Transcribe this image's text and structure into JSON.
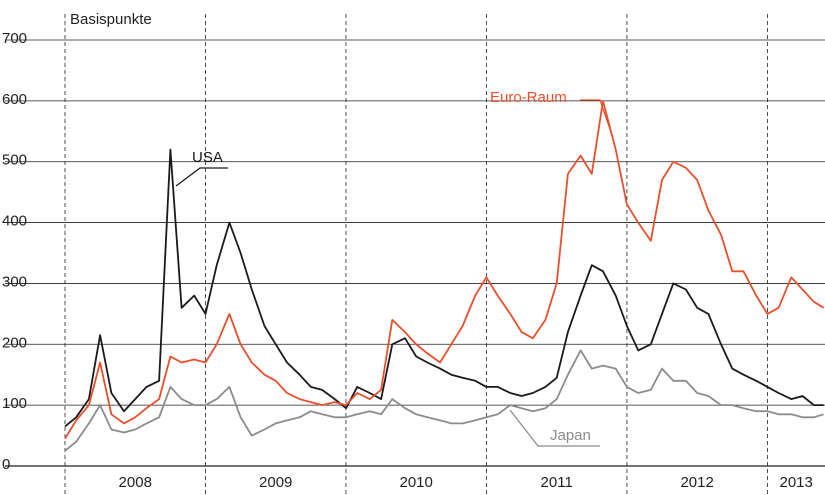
{
  "chart_data": {
    "type": "line",
    "y_label": "Basispunkte",
    "x": [
      2008,
      2008.08,
      2008.17,
      2008.25,
      2008.33,
      2008.42,
      2008.5,
      2008.58,
      2008.67,
      2008.75,
      2008.83,
      2008.92,
      2009,
      2009.08,
      2009.17,
      2009.25,
      2009.33,
      2009.42,
      2009.5,
      2009.58,
      2009.67,
      2009.75,
      2009.83,
      2009.92,
      2010,
      2010.08,
      2010.17,
      2010.25,
      2010.33,
      2010.42,
      2010.5,
      2010.58,
      2010.67,
      2010.75,
      2010.83,
      2010.92,
      2011,
      2011.08,
      2011.17,
      2011.25,
      2011.33,
      2011.42,
      2011.5,
      2011.58,
      2011.67,
      2011.75,
      2011.83,
      2011.92,
      2012,
      2012.08,
      2012.17,
      2012.25,
      2012.33,
      2012.42,
      2012.5,
      2012.58,
      2012.67,
      2012.75,
      2012.83,
      2012.92,
      2013,
      2013.08,
      2013.17,
      2013.25,
      2013.33,
      2013.4
    ],
    "series": [
      {
        "name": "USA",
        "color": "#1a1a1a",
        "values": [
          65,
          80,
          110,
          215,
          120,
          90,
          110,
          130,
          140,
          520,
          260,
          280,
          250,
          330,
          400,
          350,
          290,
          230,
          200,
          170,
          150,
          130,
          125,
          110,
          95,
          130,
          120,
          110,
          200,
          210,
          180,
          170,
          160,
          150,
          145,
          140,
          130,
          130,
          120,
          115,
          120,
          130,
          145,
          220,
          280,
          330,
          320,
          280,
          230,
          190,
          200,
          250,
          300,
          290,
          260,
          250,
          200,
          160,
          150,
          140,
          130,
          120,
          110,
          115,
          100,
          100
        ]
      },
      {
        "name": "Euro-Raum",
        "color": "#e8502d",
        "values": [
          45,
          75,
          100,
          170,
          85,
          70,
          80,
          95,
          110,
          180,
          170,
          175,
          170,
          200,
          250,
          200,
          170,
          150,
          140,
          120,
          110,
          105,
          100,
          105,
          100,
          120,
          110,
          125,
          240,
          220,
          200,
          185,
          170,
          200,
          230,
          280,
          310,
          280,
          250,
          220,
          210,
          240,
          300,
          480,
          510,
          480,
          600,
          520,
          430,
          400,
          370,
          470,
          500,
          490,
          470,
          420,
          380,
          320,
          320,
          280,
          250,
          260,
          310,
          290,
          270,
          260
        ]
      },
      {
        "name": "Japan",
        "color": "#8c8c8c",
        "values": [
          25,
          40,
          70,
          100,
          60,
          55,
          60,
          70,
          80,
          130,
          110,
          100,
          100,
          110,
          130,
          80,
          50,
          60,
          70,
          75,
          80,
          90,
          85,
          80,
          80,
          85,
          90,
          85,
          110,
          95,
          85,
          80,
          75,
          70,
          70,
          75,
          80,
          85,
          100,
          95,
          90,
          95,
          110,
          150,
          190,
          160,
          165,
          160,
          130,
          120,
          125,
          160,
          140,
          140,
          120,
          115,
          100,
          100,
          95,
          90,
          90,
          85,
          85,
          80,
          80,
          85
        ]
      }
    ],
    "xlim": [
      2008,
      2013.41
    ],
    "xticks": [
      2008,
      2009,
      2010,
      2011,
      2012,
      2013
    ],
    "ylim": [
      0,
      700
    ],
    "yticks": [
      0,
      100,
      200,
      300,
      400,
      500,
      600,
      700
    ],
    "grid": true
  }
}
